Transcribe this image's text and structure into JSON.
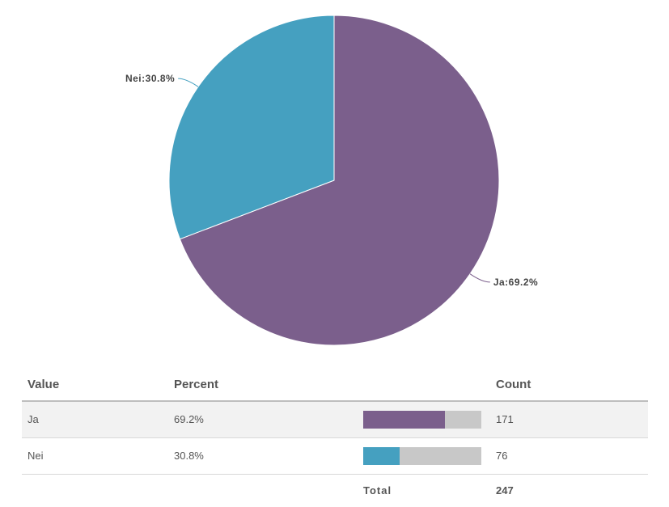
{
  "chart_data": {
    "type": "pie",
    "categories": [
      "Ja",
      "Nei"
    ],
    "values": [
      69.2,
      30.8
    ],
    "labels": [
      "Ja:69.2%",
      "Nei:30.8%"
    ],
    "colors": [
      "#7b5f8c",
      "#45a0c0"
    ]
  },
  "table": {
    "headers": {
      "value": "Value",
      "percent": "Percent",
      "count": "Count"
    },
    "rows": [
      {
        "value": "Ja",
        "percent": "69.2%",
        "count": "171",
        "fraction": 0.692,
        "color": "#7b5f8c"
      },
      {
        "value": "Nei",
        "percent": "30.8%",
        "count": "76",
        "fraction": 0.308,
        "color": "#45a0c0"
      }
    ],
    "total_label": "Total",
    "total_value": "247"
  }
}
